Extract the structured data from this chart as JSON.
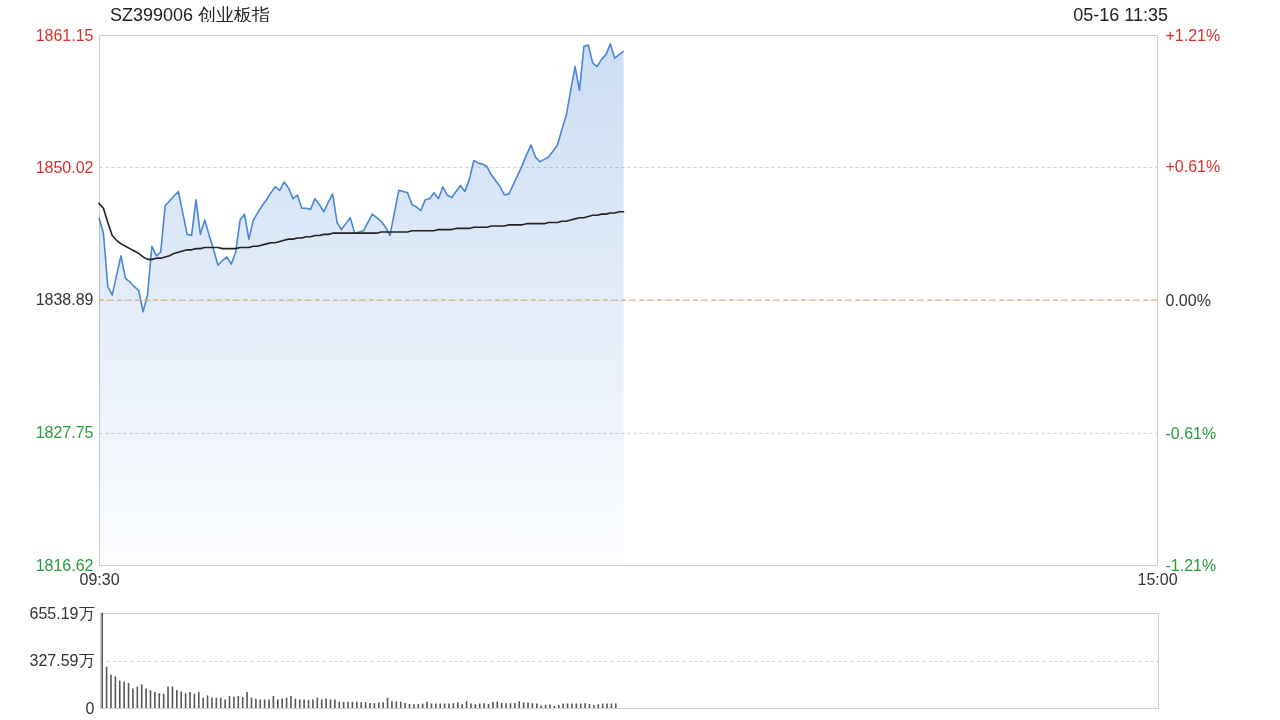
{
  "chart_data": [
    {
      "type": "line",
      "title": "SZ399006 创业板指",
      "annotations": [
        "05-16 11:35"
      ],
      "categories": [
        "09:30",
        null,
        null,
        null,
        null,
        null,
        null,
        null,
        null,
        null,
        null,
        null,
        null,
        null,
        null,
        null,
        null,
        null,
        null,
        null,
        null,
        null,
        null,
        null,
        null,
        null,
        null,
        null,
        null,
        null,
        null,
        null,
        null,
        null,
        null,
        null,
        null,
        null,
        null,
        null,
        null,
        null,
        null,
        null,
        null,
        null,
        null,
        null,
        null,
        null,
        null,
        null,
        null,
        null,
        null,
        null,
        null,
        null,
        null,
        null,
        null,
        null,
        null,
        null,
        null,
        null,
        null,
        null,
        null,
        null,
        null,
        null,
        null,
        null,
        null,
        null,
        null,
        null,
        null,
        null,
        null,
        null,
        null,
        null,
        null,
        null,
        null,
        null,
        null,
        null,
        null,
        null,
        null,
        null,
        null,
        null,
        null,
        null,
        null,
        null,
        null,
        null,
        null,
        null,
        null,
        null,
        null,
        null,
        null,
        null,
        null,
        null,
        null,
        null,
        null,
        null,
        null,
        null,
        null,
        null,
        null,
        null,
        null,
        null,
        null,
        null,
        null,
        null,
        null,
        null,
        null,
        null,
        null,
        null,
        null,
        null,
        null,
        null,
        null,
        null,
        null,
        null,
        null,
        null,
        null,
        null,
        null,
        null,
        null,
        null,
        null,
        null,
        null,
        null,
        null,
        null,
        null,
        null,
        null,
        null,
        null,
        null,
        null,
        null,
        null,
        null,
        null,
        null,
        null,
        null,
        null,
        null,
        null,
        null,
        null,
        null,
        null,
        null,
        null,
        null,
        null,
        null,
        null,
        null,
        null,
        null,
        null,
        null,
        null,
        null,
        null,
        null,
        null,
        null,
        null,
        null,
        null,
        null,
        null,
        null,
        null,
        null,
        null,
        null,
        null,
        null,
        null,
        null,
        null,
        null,
        null,
        null,
        null,
        null,
        null,
        null,
        null,
        null,
        null,
        null,
        null,
        null,
        null,
        null,
        null,
        null,
        null,
        null,
        null,
        null,
        null,
        null,
        null,
        null,
        null,
        null,
        null,
        null,
        null,
        null,
        "15:00"
      ],
      "series": [
        {
          "type": "area",
          "color": "#4a86d8",
          "values": [
            1845.8,
            1844.5,
            1840.0,
            1839.3,
            1841.0,
            1842.6,
            1840.7,
            1840.4,
            1840.0,
            1839.7,
            1837.9,
            1839.3,
            1843.4,
            1842.6,
            1842.9,
            1846.8,
            1847.2,
            1847.6,
            1848.0,
            1846.2,
            1844.4,
            1844.3,
            1847.3,
            1844.4,
            1845.6,
            1844.3,
            1843.1,
            1841.8,
            1842.2,
            1842.5,
            1841.9,
            1842.9,
            1845.6,
            1846.1,
            1844.0,
            1845.6,
            1846.2,
            1846.8,
            1847.3,
            1847.9,
            1848.4,
            1848.1,
            1848.8,
            1848.3,
            1847.4,
            1847.7,
            1846.6,
            1846.6,
            1846.5,
            1847.4,
            1846.9,
            1846.3,
            1847.1,
            1847.8,
            1845.4,
            1844.8,
            1845.3,
            1845.8,
            1844.5,
            1844.6,
            1844.7,
            1845.4,
            1846.1,
            1845.8,
            1845.5,
            1845.0,
            1844.3,
            1846.2,
            1848.1,
            1848.0,
            1847.9,
            1846.9,
            1846.7,
            1846.4,
            1847.3,
            1847.4,
            1847.9,
            1847.4,
            1848.4,
            1847.7,
            1847.5,
            1848.0,
            1848.5,
            1848.0,
            1849.0,
            1850.6,
            1850.4,
            1850.3,
            1850.1,
            1849.4,
            1848.9,
            1848.4,
            1847.7,
            1847.8,
            1848.6,
            1849.4,
            1850.2,
            1851.1,
            1851.9,
            1850.9,
            1850.5,
            1850.7,
            1850.9,
            1851.4,
            1851.9,
            1853.2,
            1854.4,
            1856.5,
            1858.5,
            1856.5,
            1860.2,
            1860.3,
            1858.8,
            1858.5,
            1859.1,
            1859.5,
            1860.4,
            1859.2,
            1859.5,
            1859.8,
            null,
            null,
            null,
            null,
            null,
            null,
            null,
            null,
            null,
            null,
            null,
            null,
            null,
            null,
            null,
            null,
            null,
            null,
            null,
            null,
            null,
            null,
            null,
            null,
            null,
            null,
            null,
            null,
            null,
            null,
            null,
            null,
            null,
            null,
            null,
            null,
            null,
            null,
            null,
            null,
            null,
            null,
            null,
            null,
            null,
            null,
            null,
            null,
            null,
            null,
            null,
            null,
            null,
            null,
            null,
            null,
            null,
            null,
            null,
            null,
            null,
            null,
            null,
            null,
            null,
            null,
            null,
            null,
            null,
            null,
            null,
            null,
            null,
            null,
            null,
            null,
            null,
            null,
            null,
            null,
            null,
            null,
            null,
            null,
            null,
            null,
            null,
            null,
            null,
            null,
            null,
            null,
            null,
            null,
            null,
            null,
            null,
            null,
            null,
            null,
            null,
            null,
            null,
            null,
            null,
            null,
            null,
            null,
            null,
            null,
            null,
            null,
            null,
            null,
            null,
            null,
            null,
            null,
            null,
            null,
            null
          ]
        },
        {
          "type": "line",
          "color": "#222222",
          "values": [
            1847.0,
            1846.6,
            1845.4,
            1844.3,
            1843.9,
            1843.6,
            1843.4,
            1843.2,
            1843.0,
            1842.8,
            1842.5,
            1842.3,
            1842.3,
            1842.4,
            1842.4,
            1842.5,
            1842.6,
            1842.8,
            1842.9,
            1843.0,
            1843.1,
            1843.1,
            1843.2,
            1843.2,
            1843.3,
            1843.3,
            1843.3,
            1843.3,
            1843.2,
            1843.2,
            1843.2,
            1843.2,
            1843.3,
            1843.3,
            1843.3,
            1843.4,
            1843.4,
            1843.5,
            1843.6,
            1843.7,
            1843.7,
            1843.8,
            1843.9,
            1844.0,
            1844.0,
            1844.1,
            1844.1,
            1844.2,
            1844.2,
            1844.3,
            1844.3,
            1844.4,
            1844.4,
            1844.5,
            1844.5,
            1844.5,
            1844.5,
            1844.5,
            1844.5,
            1844.5,
            1844.5,
            1844.5,
            1844.5,
            1844.5,
            1844.6,
            1844.6,
            1844.6,
            1844.6,
            1844.6,
            1844.6,
            1844.6,
            1844.7,
            1844.7,
            1844.7,
            1844.7,
            1844.7,
            1844.7,
            1844.8,
            1844.8,
            1844.8,
            1844.8,
            1844.9,
            1844.9,
            1844.9,
            1844.9,
            1845.0,
            1845.0,
            1845.0,
            1845.0,
            1845.1,
            1845.1,
            1845.1,
            1845.1,
            1845.2,
            1845.2,
            1845.2,
            1845.2,
            1845.3,
            1845.3,
            1845.3,
            1845.3,
            1845.3,
            1845.4,
            1845.4,
            1845.4,
            1845.5,
            1845.5,
            1845.6,
            1845.7,
            1845.8,
            1845.8,
            1845.9,
            1846.0,
            1846.0,
            1846.1,
            1846.1,
            1846.2,
            1846.2,
            1846.3,
            1846.3,
            null,
            null,
            null,
            null,
            null,
            null,
            null,
            null,
            null,
            null,
            null,
            null,
            null,
            null,
            null,
            null,
            null,
            null,
            null,
            null,
            null,
            null,
            null,
            null,
            null,
            null,
            null,
            null,
            null,
            null,
            null,
            null,
            null,
            null,
            null,
            null,
            null,
            null,
            null,
            null,
            null,
            null,
            null,
            null,
            null,
            null,
            null,
            null,
            null,
            null,
            null,
            null,
            null,
            null,
            null,
            null,
            null,
            null,
            null,
            null,
            null,
            null,
            null,
            null,
            null,
            null,
            null,
            null,
            null,
            null,
            null,
            null,
            null,
            null,
            null,
            null,
            null,
            null,
            null,
            null,
            null,
            null,
            null,
            null,
            null,
            null,
            null,
            null,
            null,
            null,
            null,
            null,
            null,
            null,
            null,
            null,
            null,
            null,
            null,
            null,
            null,
            null,
            null,
            null,
            null,
            null,
            null,
            null,
            null,
            null,
            null,
            null,
            null,
            null,
            null,
            null,
            null,
            null,
            null,
            null,
            null
          ]
        }
      ],
      "ylim": [
        1816.62,
        1861.15
      ],
      "yticks": [
        1816.62,
        1827.75,
        1838.89,
        1850.02,
        1861.15
      ],
      "y2lim": [
        -1.21,
        1.21
      ],
      "y2ticks": [
        {
          "value": -1.21,
          "label": "-1.21%"
        },
        {
          "value": -0.61,
          "label": "-0.61%"
        },
        {
          "value": 0,
          "label": "0.00%"
        },
        {
          "value": 0.61,
          "label": "+0.61%"
        },
        {
          "value": 1.21,
          "label": "+1.21%"
        }
      ],
      "ref_lines": [
        {
          "axis": "y2",
          "value": 0,
          "color": "#f0a050",
          "line_style": "dashed"
        }
      ],
      "grid": true
    },
    {
      "type": "bar",
      "color": "#555555",
      "categories": [
        null,
        null,
        null,
        null,
        null,
        null,
        null,
        null,
        null,
        null,
        null,
        null,
        null,
        null,
        null,
        null,
        null,
        null,
        null,
        null,
        null,
        null,
        null,
        null,
        null,
        null,
        null,
        null,
        null,
        null,
        null,
        null,
        null,
        null,
        null,
        null,
        null,
        null,
        null,
        null,
        null,
        null,
        null,
        null,
        null,
        null,
        null,
        null,
        null,
        null,
        null,
        null,
        null,
        null,
        null,
        null,
        null,
        null,
        null,
        null,
        null,
        null,
        null,
        null,
        null,
        null,
        null,
        null,
        null,
        null,
        null,
        null,
        null,
        null,
        null,
        null,
        null,
        null,
        null,
        null,
        null,
        null,
        null,
        null,
        null,
        null,
        null,
        null,
        null,
        null,
        null,
        null,
        null,
        null,
        null,
        null,
        null,
        null,
        null,
        null,
        null,
        null,
        null,
        null,
        null,
        null,
        null,
        null,
        null,
        null,
        null,
        null,
        null,
        null,
        null,
        null,
        null,
        null,
        null,
        null,
        null,
        null,
        null,
        null,
        null,
        null,
        null,
        null,
        null,
        null,
        null,
        null,
        null,
        null,
        null,
        null,
        null,
        null,
        null,
        null,
        null,
        null,
        null,
        null,
        null,
        null,
        null,
        null,
        null,
        null,
        null,
        null,
        null,
        null,
        null,
        null,
        null,
        null,
        null,
        null,
        null,
        null,
        null,
        null,
        null,
        null,
        null,
        null,
        null,
        null,
        null,
        null,
        null,
        null,
        null,
        null,
        null,
        null,
        null,
        null,
        null,
        null,
        null,
        null,
        null,
        null,
        null,
        null,
        null,
        null,
        null,
        null,
        null,
        null,
        null,
        null,
        null,
        null,
        null,
        null,
        null,
        null,
        null,
        null,
        null,
        null,
        null,
        null,
        null,
        null,
        null,
        null,
        null,
        null,
        null,
        null,
        null,
        null,
        null,
        null,
        null,
        null,
        null,
        null,
        null,
        null,
        null,
        null,
        null,
        null,
        null,
        null,
        null,
        null,
        null,
        null,
        null,
        null,
        null,
        null,
        null
      ],
      "values": [
        655,
        284,
        229,
        218,
        189,
        182,
        173,
        135,
        147,
        163,
        135,
        123,
        111,
        102,
        99,
        149,
        149,
        125,
        114,
        102,
        111,
        99,
        111,
        71,
        87,
        73,
        71,
        71,
        59,
        83,
        78,
        83,
        76,
        111,
        71,
        64,
        59,
        59,
        59,
        83,
        59,
        64,
        71,
        83,
        64,
        59,
        59,
        55,
        59,
        71,
        59,
        66,
        59,
        59,
        43,
        43,
        43,
        43,
        43,
        40,
        40,
        35,
        33,
        38,
        40,
        71,
        47,
        45,
        43,
        35,
        28,
        26,
        28,
        30,
        43,
        31,
        31,
        31,
        31,
        31,
        33,
        40,
        26,
        47,
        31,
        26,
        31,
        33,
        28,
        43,
        45,
        35,
        33,
        33,
        35,
        47,
        38,
        38,
        33,
        31,
        17,
        21,
        24,
        14,
        21,
        31,
        31,
        31,
        31,
        31,
        33,
        28,
        21,
        26,
        31,
        31,
        31,
        31,
        null,
        null,
        null,
        null,
        null,
        null,
        null,
        null,
        null,
        null,
        null,
        null,
        null,
        null,
        null,
        null,
        null,
        null,
        null,
        null,
        null,
        null,
        null,
        null,
        null,
        null,
        null,
        null,
        null,
        null,
        null,
        null,
        null,
        null,
        null,
        null,
        null,
        null,
        null,
        null,
        null,
        null,
        null,
        null,
        null,
        null,
        null,
        null,
        null,
        null,
        null,
        null,
        null,
        null,
        null,
        null,
        null,
        null,
        null,
        null,
        null,
        null,
        null,
        null,
        null,
        null,
        null,
        null,
        null,
        null,
        null,
        null,
        null,
        null,
        null,
        null,
        null,
        null,
        null,
        null,
        null,
        null,
        null,
        null,
        null,
        null,
        null,
        null,
        null,
        null,
        null,
        null,
        null,
        null,
        null,
        null,
        null,
        null,
        null,
        null,
        null,
        null,
        null,
        null,
        null,
        null,
        null,
        null,
        null,
        null,
        null,
        null,
        null,
        null,
        null,
        null,
        null,
        null,
        null,
        null,
        null,
        null,
        null
      ],
      "ylim": [
        0,
        655.19
      ],
      "yticks": [
        0,
        {
          "value": 327.59,
          "label": "327.59万"
        },
        {
          "value": 655.19,
          "label": "655.19万"
        }
      ],
      "grid": "y",
      "tick_labels": "y"
    }
  ]
}
